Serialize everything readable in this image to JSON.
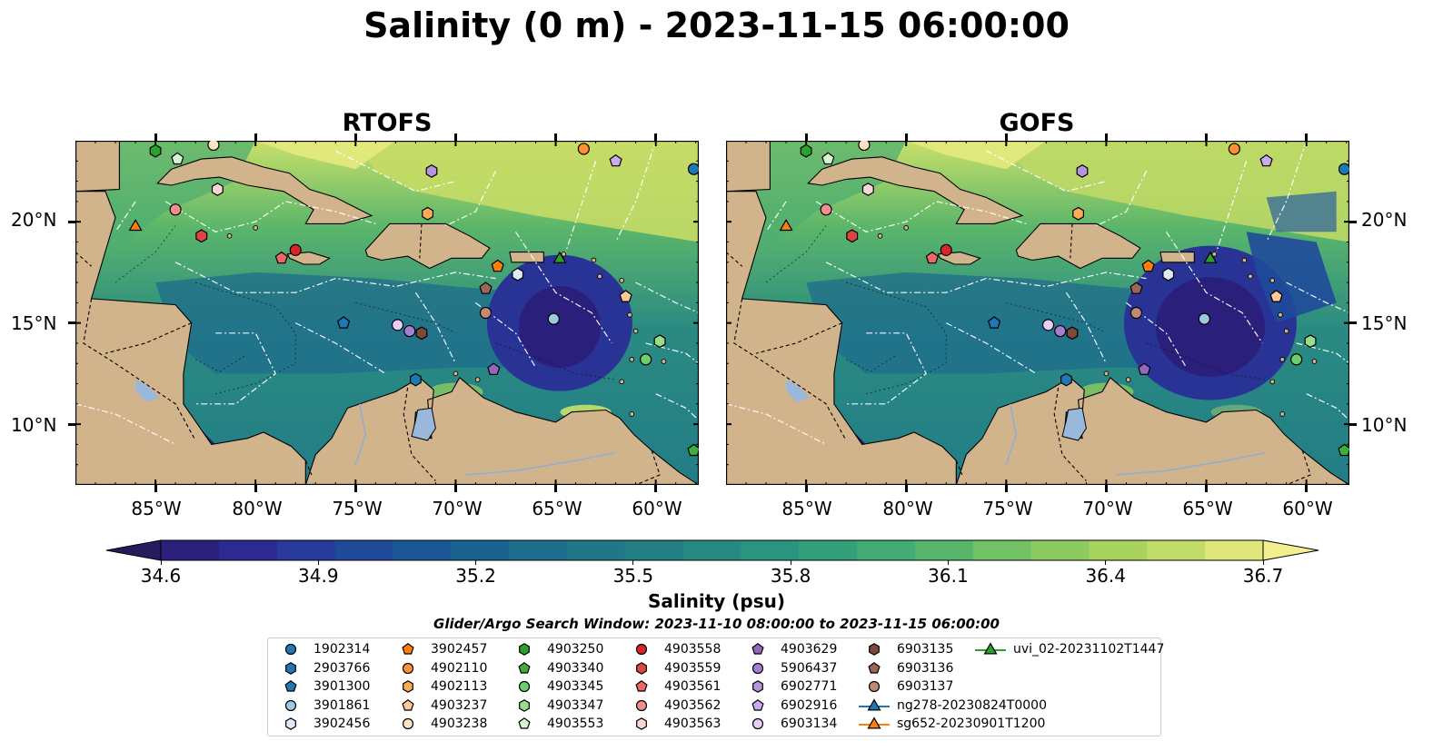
{
  "title": "Salinity (0 m) - 2023-11-15 06:00:00",
  "panels": [
    {
      "name": "RTOFS"
    },
    {
      "name": "GOFS"
    }
  ],
  "lat_ticks": [
    "20°N",
    "15°N",
    "10°N"
  ],
  "lon_ticks": [
    "85°W",
    "80°W",
    "75°W",
    "70°W",
    "65°W",
    "60°W"
  ],
  "colorbar": {
    "label": "Salinity (psu)",
    "min": 34.6,
    "max": 36.7,
    "ticks": [
      "34.6",
      "34.9",
      "35.2",
      "35.5",
      "35.8",
      "36.1",
      "36.4",
      "36.7"
    ],
    "colors": [
      "#251c5e",
      "#2a1f7a",
      "#2c2a90",
      "#283a9c",
      "#1f4a9a",
      "#1b5796",
      "#1a6290",
      "#1c6d8c",
      "#1f7788",
      "#228084",
      "#268a82",
      "#2b947f",
      "#34a07a",
      "#43ab74",
      "#58b66c",
      "#72c165",
      "#8dca5f",
      "#a8d35e",
      "#c2dd67",
      "#dde77a",
      "#f3ef8f"
    ]
  },
  "search_window": "Glider/Argo Search Window: 2023-11-10 08:00:00 to 2023-11-15 06:00:00",
  "legend": [
    {
      "id": "1902314",
      "marker": "circle",
      "color": "#1f77b4"
    },
    {
      "id": "2903766",
      "marker": "hexagon",
      "color": "#1f77b4"
    },
    {
      "id": "3901300",
      "marker": "pentagon",
      "color": "#1f77b4"
    },
    {
      "id": "3901861",
      "marker": "circle",
      "color": "#9ecae1"
    },
    {
      "id": "3902456",
      "marker": "hexagon",
      "color": "#deebf7"
    },
    {
      "id": "3902457",
      "marker": "pentagon",
      "color": "#ff7f0e"
    },
    {
      "id": "4902110",
      "marker": "circle",
      "color": "#ff8f33"
    },
    {
      "id": "4902113",
      "marker": "hexagon",
      "color": "#ffaa55"
    },
    {
      "id": "4903237",
      "marker": "pentagon",
      "color": "#ffc999"
    },
    {
      "id": "4903238",
      "marker": "circle",
      "color": "#ffe2c4"
    },
    {
      "id": "4903250",
      "marker": "hexagon",
      "color": "#2ca02c"
    },
    {
      "id": "4903340",
      "marker": "pentagon",
      "color": "#3caf3c"
    },
    {
      "id": "4903345",
      "marker": "circle",
      "color": "#6ccf6c"
    },
    {
      "id": "4903347",
      "marker": "hexagon",
      "color": "#98df8a"
    },
    {
      "id": "4903553",
      "marker": "pentagon",
      "color": "#d6f5d0"
    },
    {
      "id": "4903558",
      "marker": "circle",
      "color": "#d62728"
    },
    {
      "id": "4903559",
      "marker": "hexagon",
      "color": "#dd4444"
    },
    {
      "id": "4903561",
      "marker": "pentagon",
      "color": "#ee6666"
    },
    {
      "id": "4903562",
      "marker": "circle",
      "color": "#f28e8e"
    },
    {
      "id": "4903563",
      "marker": "hexagon",
      "color": "#fbd6d6"
    },
    {
      "id": "4903629",
      "marker": "pentagon",
      "color": "#9467bd"
    },
    {
      "id": "5906437",
      "marker": "circle",
      "color": "#a77fd0"
    },
    {
      "id": "6902771",
      "marker": "hexagon",
      "color": "#b794e0"
    },
    {
      "id": "6902916",
      "marker": "pentagon",
      "color": "#cbaaf0"
    },
    {
      "id": "6903134",
      "marker": "circle",
      "color": "#eacdf8"
    },
    {
      "id": "6903135",
      "marker": "hexagon",
      "color": "#7b4a3a"
    },
    {
      "id": "6903136",
      "marker": "pentagon",
      "color": "#9a6656"
    },
    {
      "id": "6903137",
      "marker": "circle",
      "color": "#c08a76"
    },
    {
      "id": "ng278-20230824T0000",
      "marker": "triangle-line",
      "color": "#1f77b4"
    },
    {
      "id": "sg652-20230901T1200",
      "marker": "triangle-line",
      "color": "#ff7f0e"
    },
    {
      "id": "uvi_02-20231102T1447",
      "marker": "triangle-line",
      "color": "#2ca02c"
    }
  ],
  "observations": [
    {
      "id": "1902314",
      "lon": -58.1,
      "lat": 22.6
    },
    {
      "id": "2903766",
      "lon": -72.0,
      "lat": 12.2
    },
    {
      "id": "3901300",
      "lon": -75.6,
      "lat": 15.0
    },
    {
      "id": "3901861",
      "lon": -65.1,
      "lat": 15.2
    },
    {
      "id": "3902456",
      "lon": -66.9,
      "lat": 17.4
    },
    {
      "id": "3902457",
      "lon": -67.9,
      "lat": 17.8
    },
    {
      "id": "4902110",
      "lon": -63.6,
      "lat": 23.6
    },
    {
      "id": "4902113",
      "lon": -71.4,
      "lat": 20.4
    },
    {
      "id": "4903237",
      "lon": -61.5,
      "lat": 16.3
    },
    {
      "id": "4903238",
      "lon": -82.1,
      "lat": 23.8
    },
    {
      "id": "4903250",
      "lon": -85.0,
      "lat": 23.5
    },
    {
      "id": "4903340",
      "lon": -58.1,
      "lat": 8.7
    },
    {
      "id": "4903345",
      "lon": -60.5,
      "lat": 13.2
    },
    {
      "id": "4903347",
      "lon": -59.8,
      "lat": 14.1
    },
    {
      "id": "4903553",
      "lon": -83.9,
      "lat": 23.1
    },
    {
      "id": "4903558",
      "lon": -78.0,
      "lat": 18.6
    },
    {
      "id": "4903559",
      "lon": -82.7,
      "lat": 19.3
    },
    {
      "id": "4903561",
      "lon": -78.7,
      "lat": 18.2
    },
    {
      "id": "4903562",
      "lon": -84.0,
      "lat": 20.6
    },
    {
      "id": "4903563",
      "lon": -81.9,
      "lat": 21.6
    },
    {
      "id": "4903629",
      "lon": -68.1,
      "lat": 12.7
    },
    {
      "id": "5906437",
      "lon": -72.3,
      "lat": 14.6
    },
    {
      "id": "6902771",
      "lon": -71.2,
      "lat": 22.5
    },
    {
      "id": "6902916",
      "lon": -62.0,
      "lat": 23.0
    },
    {
      "id": "6903134",
      "lon": -72.9,
      "lat": 14.9
    },
    {
      "id": "6903135",
      "lon": -71.7,
      "lat": 14.5
    },
    {
      "id": "6903136",
      "lon": -68.5,
      "lat": 16.7
    },
    {
      "id": "6903137",
      "lon": -68.5,
      "lat": 15.5
    },
    {
      "id": "sg652-20230901T1200",
      "lon": -86.0,
      "lat": 19.8
    },
    {
      "id": "uvi_02-20231102T1447",
      "lon": -64.8,
      "lat": 18.2
    }
  ]
}
